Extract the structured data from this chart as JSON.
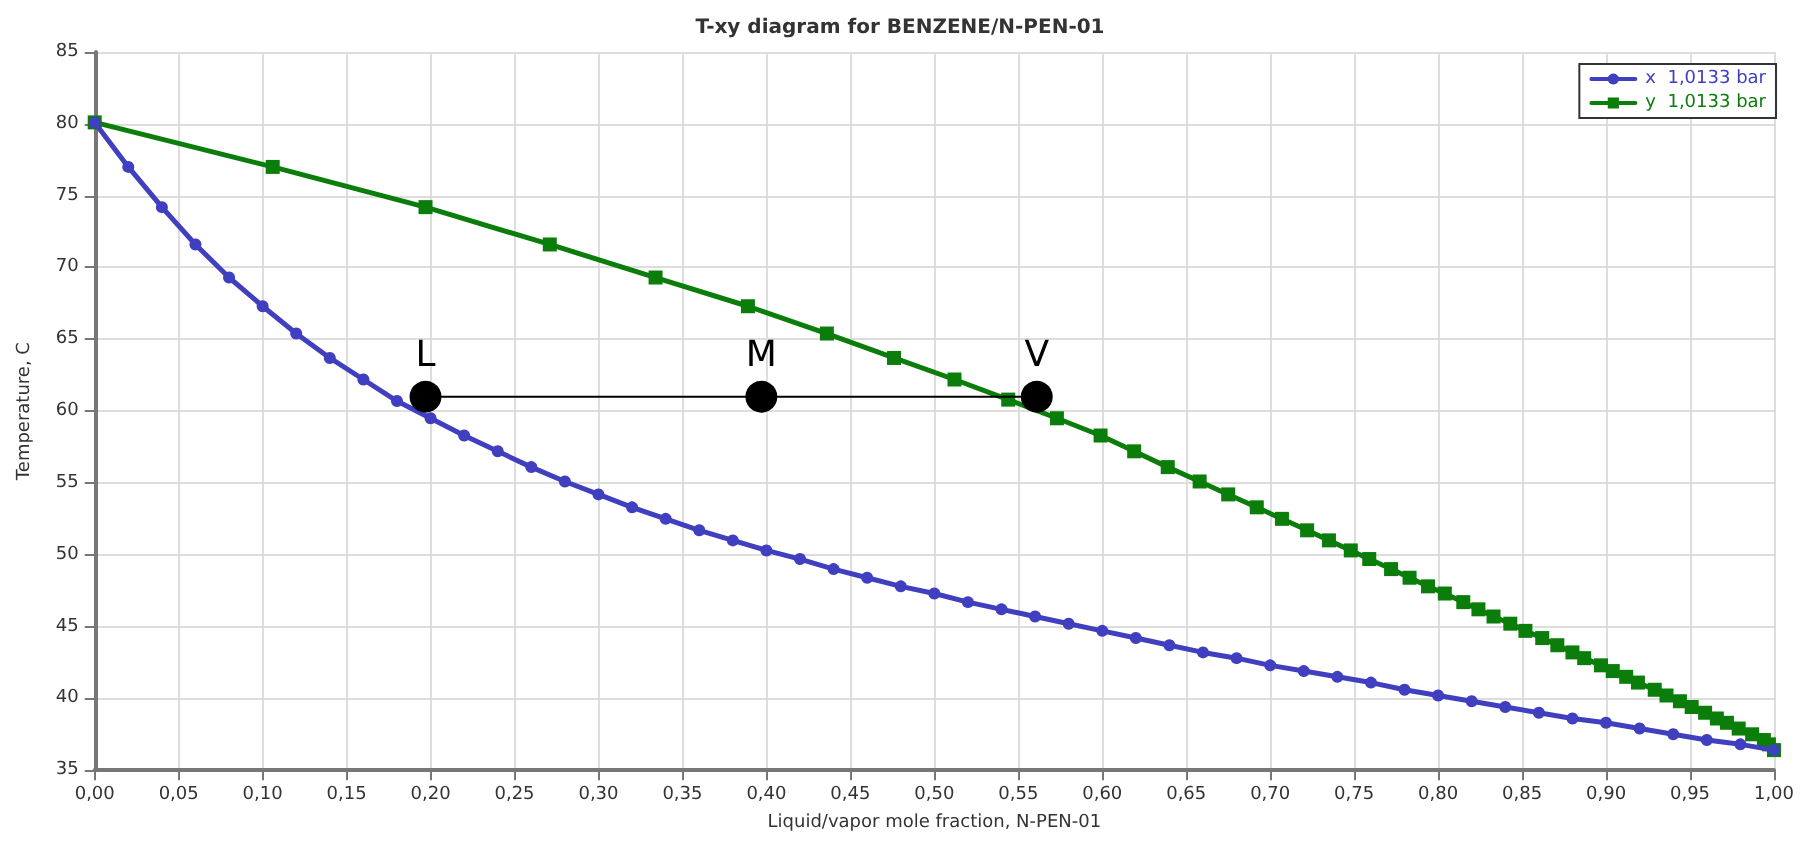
{
  "chart_data": {
    "type": "line",
    "title": "T-xy diagram for BENZENE/N-PEN-01",
    "xlabel": "Liquid/vapor mole fraction, N-PEN-01",
    "ylabel": "Temperature, C",
    "series": [
      {
        "name": "x  1,0133 bar",
        "color": "#3f3fbf",
        "marker": "circle",
        "x": [
          0,
          0.02,
          0.04,
          0.06,
          0.08,
          0.1,
          0.12,
          0.14,
          0.16,
          0.18,
          0.2,
          0.22,
          0.24,
          0.26,
          0.28,
          0.3,
          0.32,
          0.34,
          0.36,
          0.38,
          0.4,
          0.42,
          0.44,
          0.46,
          0.48,
          0.5,
          0.52,
          0.54,
          0.56,
          0.58,
          0.6,
          0.62,
          0.64,
          0.66,
          0.68,
          0.7,
          0.72,
          0.74,
          0.76,
          0.78,
          0.8,
          0.82,
          0.84,
          0.86,
          0.88,
          0.9,
          0.92,
          0.94,
          0.96,
          0.98,
          1
        ],
        "values": [
          80.1,
          77,
          74.2,
          71.6,
          69.3,
          67.3,
          65.4,
          63.7,
          62.2,
          60.7,
          59.5,
          58.3,
          57.2,
          56.1,
          55.1,
          54.2,
          53.3,
          52.5,
          51.7,
          51,
          50.3,
          49.7,
          49,
          48.4,
          47.8,
          47.3,
          46.7,
          46.2,
          45.7,
          45.2,
          44.7,
          44.2,
          43.7,
          43.2,
          42.8,
          42.3,
          41.9,
          41.5,
          41.1,
          40.6,
          40.2,
          39.8,
          39.4,
          39,
          38.6,
          38.3,
          37.9,
          37.5,
          37.1,
          36.8,
          36.4
        ]
      },
      {
        "name": "y  1,0133 bar",
        "color": "#0a7d0a",
        "marker": "square",
        "x": [
          0,
          0.106,
          0.197,
          0.271,
          0.334,
          0.389,
          0.436,
          0.476,
          0.512,
          0.544,
          0.573,
          0.599,
          0.619,
          0.639,
          0.658,
          0.675,
          0.692,
          0.707,
          0.722,
          0.735,
          0.748,
          0.759,
          0.772,
          0.783,
          0.794,
          0.804,
          0.815,
          0.824,
          0.833,
          0.843,
          0.852,
          0.862,
          0.871,
          0.88,
          0.887,
          0.897,
          0.904,
          0.912,
          0.919,
          0.929,
          0.936,
          0.944,
          0.951,
          0.959,
          0.966,
          0.972,
          0.979,
          0.987,
          0.994,
          0.997,
          1
        ],
        "values": [
          80.1,
          77,
          74.2,
          71.6,
          69.3,
          67.3,
          65.4,
          63.7,
          62.2,
          60.8,
          59.5,
          58.3,
          57.2,
          56.1,
          55.1,
          54.2,
          53.3,
          52.5,
          51.7,
          51,
          50.3,
          49.7,
          49,
          48.4,
          47.8,
          47.3,
          46.7,
          46.2,
          45.7,
          45.2,
          44.7,
          44.2,
          43.7,
          43.2,
          42.8,
          42.3,
          41.9,
          41.5,
          41.1,
          40.6,
          40.2,
          39.8,
          39.4,
          39,
          38.6,
          38.3,
          37.9,
          37.5,
          37.1,
          36.8,
          36.4
        ]
      },
      {
        "color": "#000000",
        "marker": "circle",
        "x": [
          0.197,
          0.397,
          0.561
        ],
        "values": [
          61,
          61,
          61
        ]
      }
    ],
    "annotations": [
      {
        "text": "L",
        "x": 0.197,
        "y": 61
      },
      {
        "text": "M",
        "x": 0.397,
        "y": 61
      },
      {
        "text": "V",
        "x": 0.561,
        "y": 61
      }
    ],
    "xlim": [
      0,
      1
    ],
    "ylim": [
      35,
      85
    ],
    "xticks": [
      {
        "value": 0,
        "label": "0,00"
      },
      {
        "value": 0.05,
        "label": "0,05"
      },
      {
        "value": 0.1,
        "label": "0,10"
      },
      {
        "value": 0.15,
        "label": "0,15"
      },
      {
        "value": 0.2,
        "label": "0,20"
      },
      {
        "value": 0.25,
        "label": "0,25"
      },
      {
        "value": 0.3,
        "label": "0,30"
      },
      {
        "value": 0.35,
        "label": "0,35"
      },
      {
        "value": 0.4,
        "label": "0,40"
      },
      {
        "value": 0.45,
        "label": "0,45"
      },
      {
        "value": 0.5,
        "label": "0,50"
      },
      {
        "value": 0.55,
        "label": "0,55"
      },
      {
        "value": 0.6,
        "label": "0,60"
      },
      {
        "value": 0.65,
        "label": "0,65"
      },
      {
        "value": 0.7,
        "label": "0,70"
      },
      {
        "value": 0.75,
        "label": "0,75"
      },
      {
        "value": 0.8,
        "label": "0,80"
      },
      {
        "value": 0.85,
        "label": "0,85"
      },
      {
        "value": 0.9,
        "label": "0,90"
      },
      {
        "value": 0.95,
        "label": "0,95"
      },
      {
        "value": 1,
        "label": "1,00"
      }
    ],
    "yticks": [
      35,
      40,
      45,
      50,
      55,
      60,
      65,
      70,
      75,
      80,
      85
    ],
    "grid": true,
    "legend": "top right"
  }
}
